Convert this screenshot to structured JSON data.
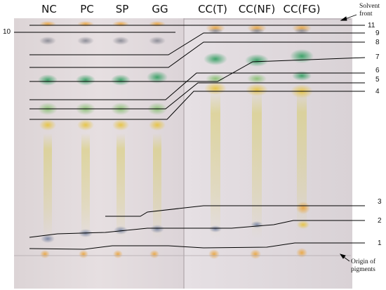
{
  "figure": {
    "lanes_left": [
      "NC",
      "PC",
      "SP",
      "GG"
    ],
    "lanes_right": [
      "CC(T)",
      "CC(NF)",
      "CC(FG)"
    ],
    "band_numbers": [
      "1",
      "2",
      "3",
      "4",
      "5",
      "6",
      "7",
      "8",
      "9",
      "10",
      "11"
    ],
    "solvent_front": [
      "Solvent",
      "front"
    ],
    "origin": [
      "Origin of",
      "pigments"
    ]
  }
}
